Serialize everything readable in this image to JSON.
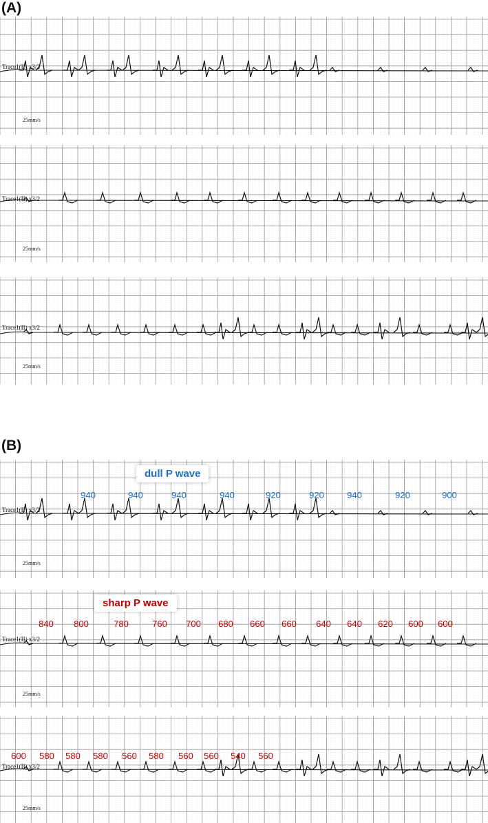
{
  "panels": {
    "a_label": "(A)",
    "b_label": "(B)"
  },
  "strip_labels": {
    "trace": "Trace1(II) x3/2",
    "speed": "25mm/s"
  },
  "callouts": {
    "dull": "dull P wave",
    "sharp": "sharp P wave"
  },
  "colors": {
    "dull_annotation": "#1f6fc4",
    "sharp_annotation": "#c00000",
    "grid": "#9a9a9a",
    "trace": "#111111"
  },
  "annotations": {
    "b_strip1": [
      "940",
      "940",
      "940",
      "940",
      "920",
      "920",
      "940",
      "920",
      "900"
    ],
    "b_strip2": [
      "840",
      "800",
      "780",
      "760",
      "700",
      "680",
      "660",
      "660",
      "640",
      "640",
      "620",
      "600",
      "600"
    ],
    "b_strip3": [
      "600",
      "580",
      "580",
      "580",
      "560",
      "580",
      "560",
      "560",
      "540",
      "560"
    ]
  }
}
